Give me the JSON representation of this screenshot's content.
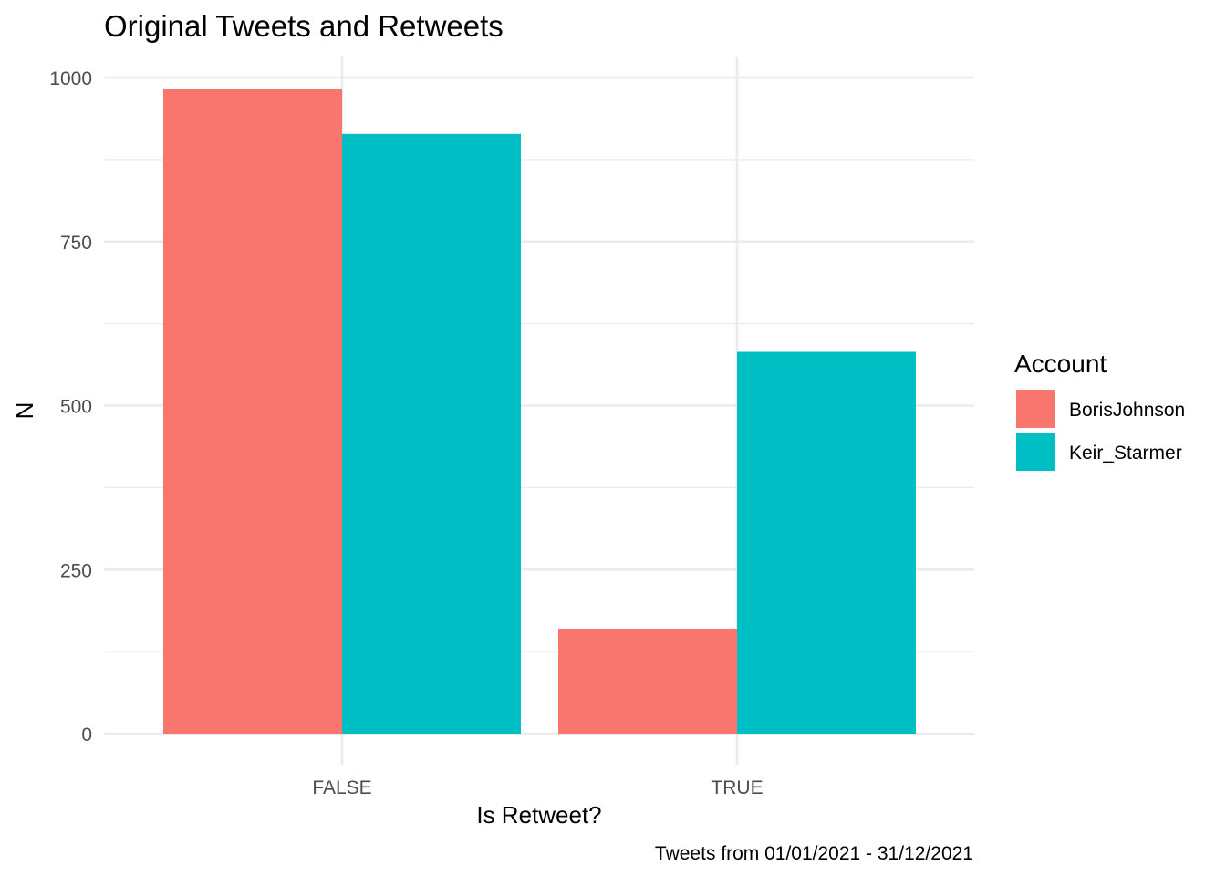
{
  "chart_data": {
    "type": "bar",
    "title": "Original Tweets and Retweets",
    "xlabel": "Is Retweet?",
    "ylabel": "N",
    "caption": "Tweets from 01/01/2021 - 31/12/2021",
    "categories": [
      "FALSE",
      "TRUE"
    ],
    "series": [
      {
        "name": "BorisJohnson",
        "values": [
          983,
          160
        ],
        "color": "#F8766D"
      },
      {
        "name": "Keir_Starmer",
        "values": [
          914,
          582
        ],
        "color": "#00BFC4"
      }
    ],
    "ylim": [
      0,
      1000
    ],
    "yticks": [
      0,
      250,
      500,
      750,
      1000
    ],
    "legend": {
      "title": "Account",
      "position": "right"
    },
    "grid": true
  }
}
